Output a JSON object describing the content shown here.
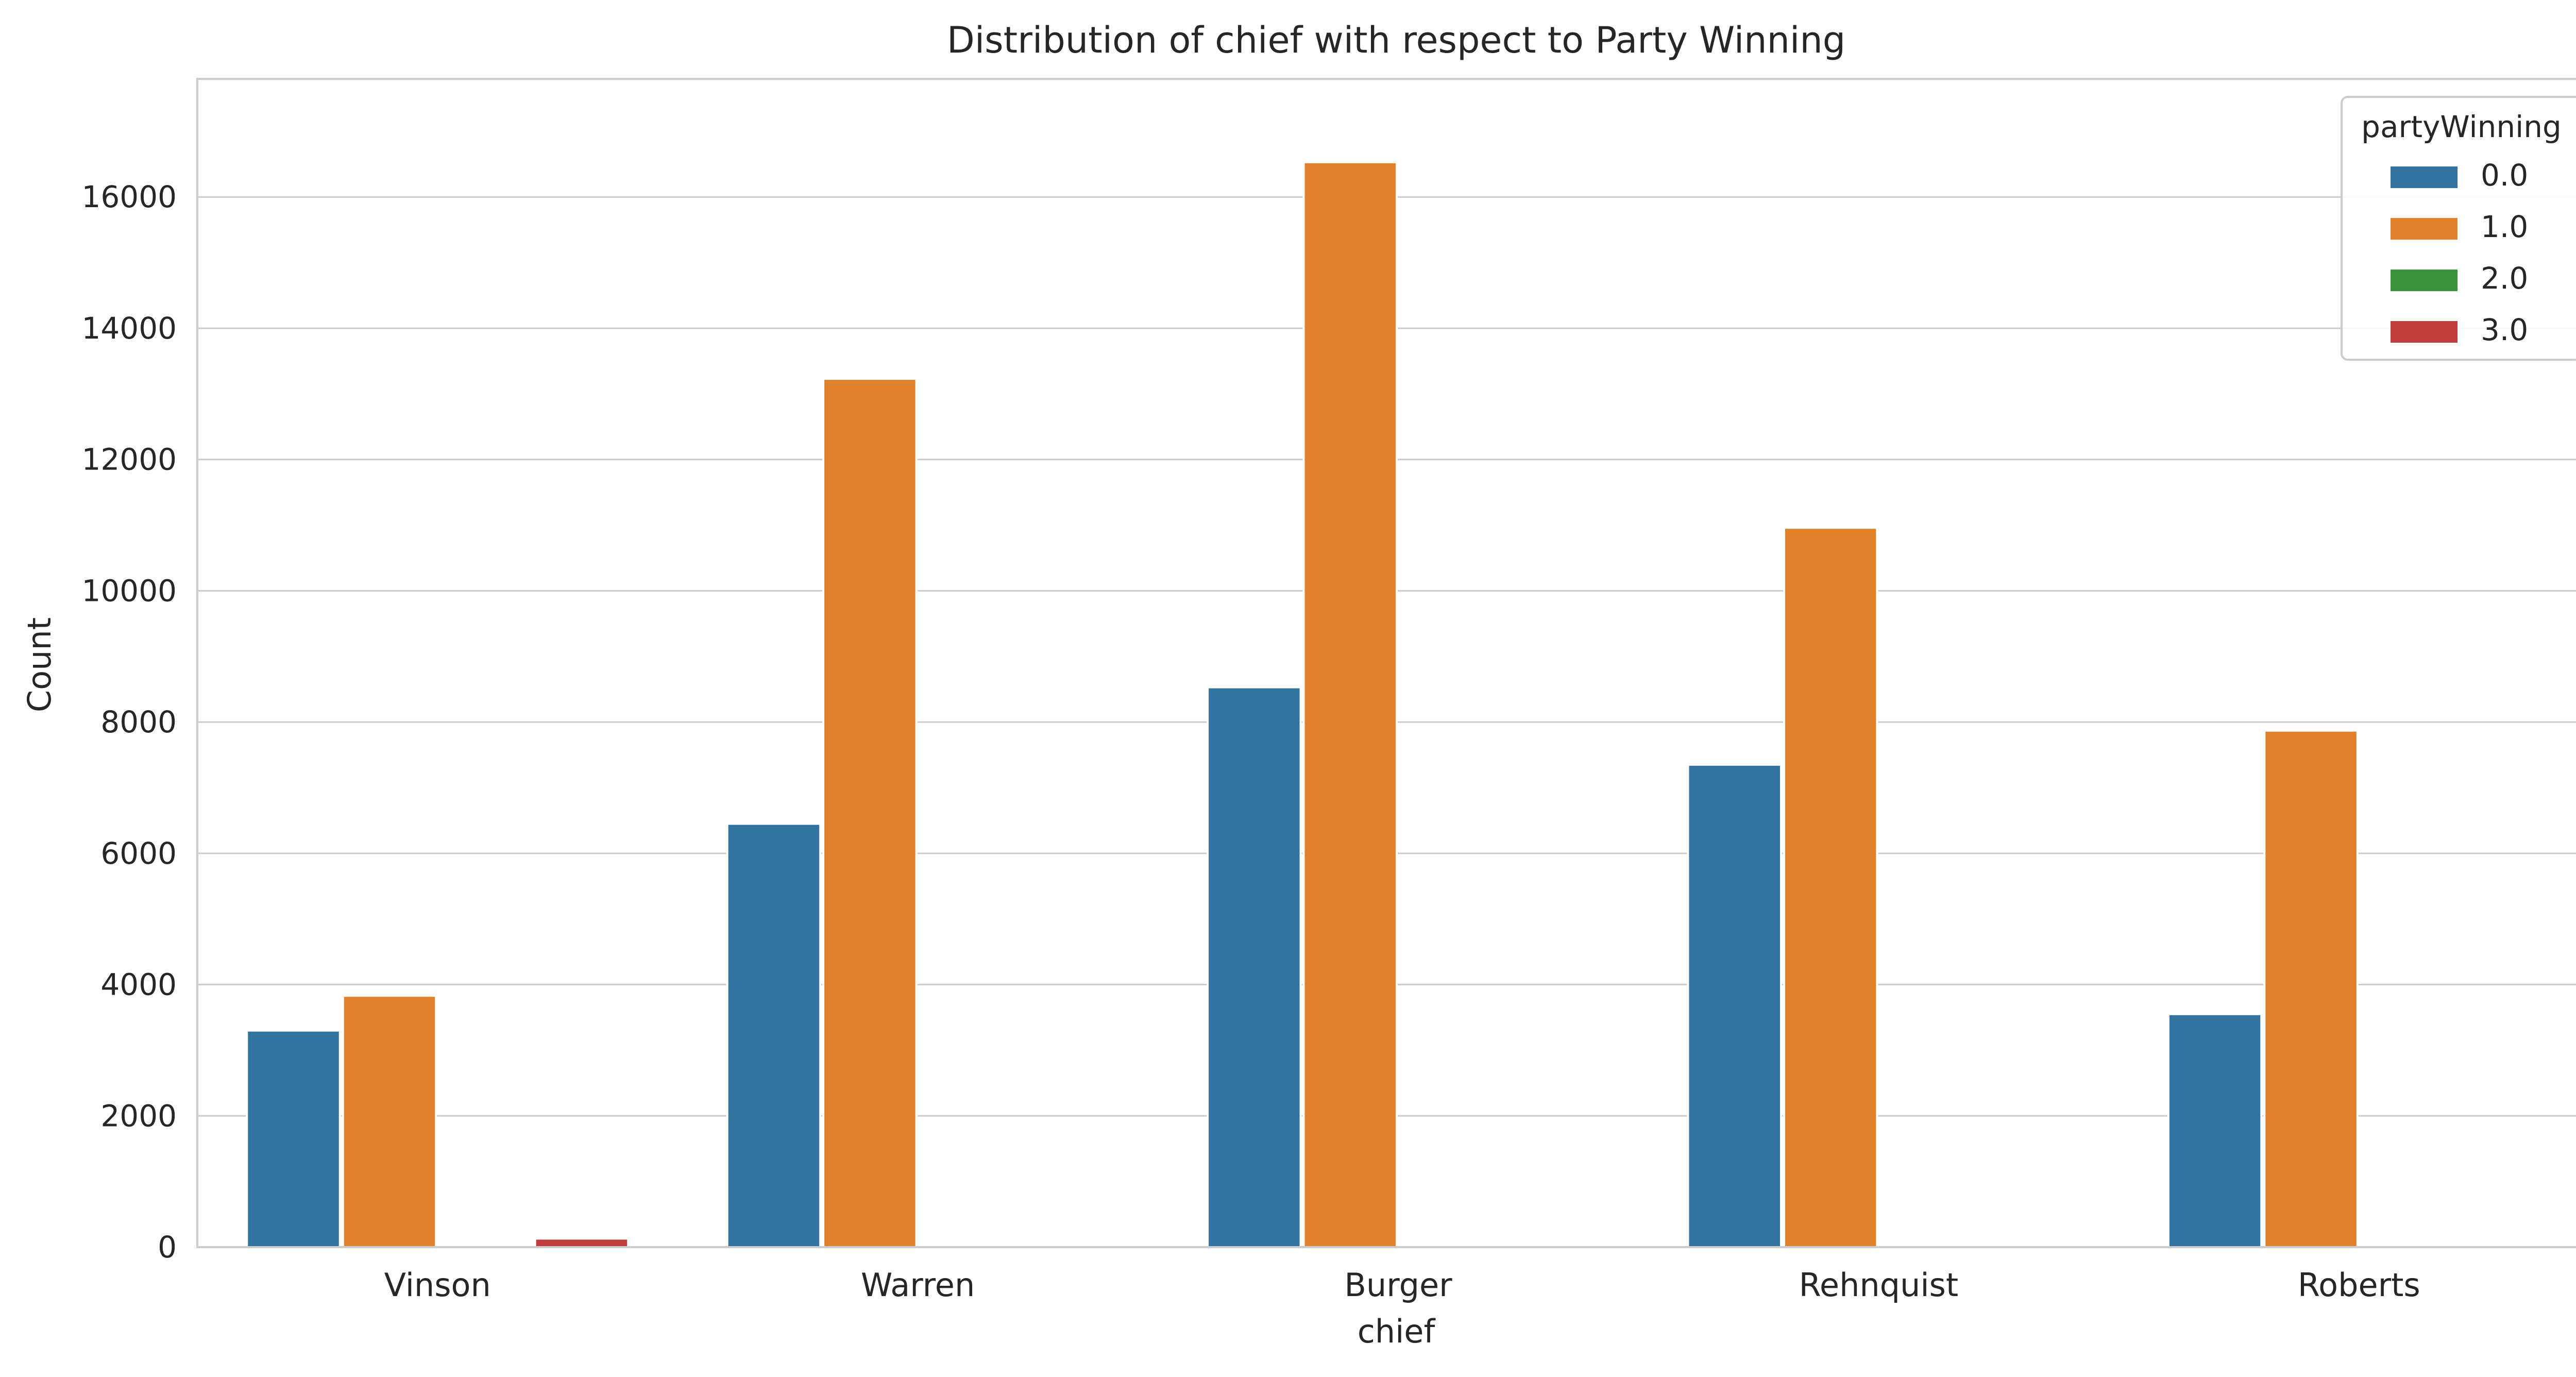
{
  "chart_data": {
    "type": "bar",
    "title": "Distribution of chief with respect to Party Winning",
    "xlabel": "chief",
    "ylabel": "Count",
    "categories": [
      "Vinson",
      "Warren",
      "Burger",
      "Rehnquist",
      "Roberts"
    ],
    "ylim": [
      0,
      17800
    ],
    "yticks": [
      0,
      2000,
      4000,
      6000,
      8000,
      10000,
      12000,
      14000,
      16000
    ],
    "grid": true,
    "legend": {
      "title": "partyWinning",
      "placement": "top-right"
    },
    "series": [
      {
        "name": "0.0",
        "color": "#3274a1",
        "values": [
          3300,
          6450,
          8530,
          7350,
          3550
        ]
      },
      {
        "name": "1.0",
        "color": "#e1812c",
        "values": [
          3830,
          13230,
          16530,
          10960,
          7870
        ]
      },
      {
        "name": "2.0",
        "color": "#3a923a",
        "values": [
          0,
          0,
          0,
          0,
          0
        ]
      },
      {
        "name": "3.0",
        "color": "#c03d3e",
        "values": [
          130,
          0,
          0,
          0,
          0
        ]
      }
    ]
  }
}
